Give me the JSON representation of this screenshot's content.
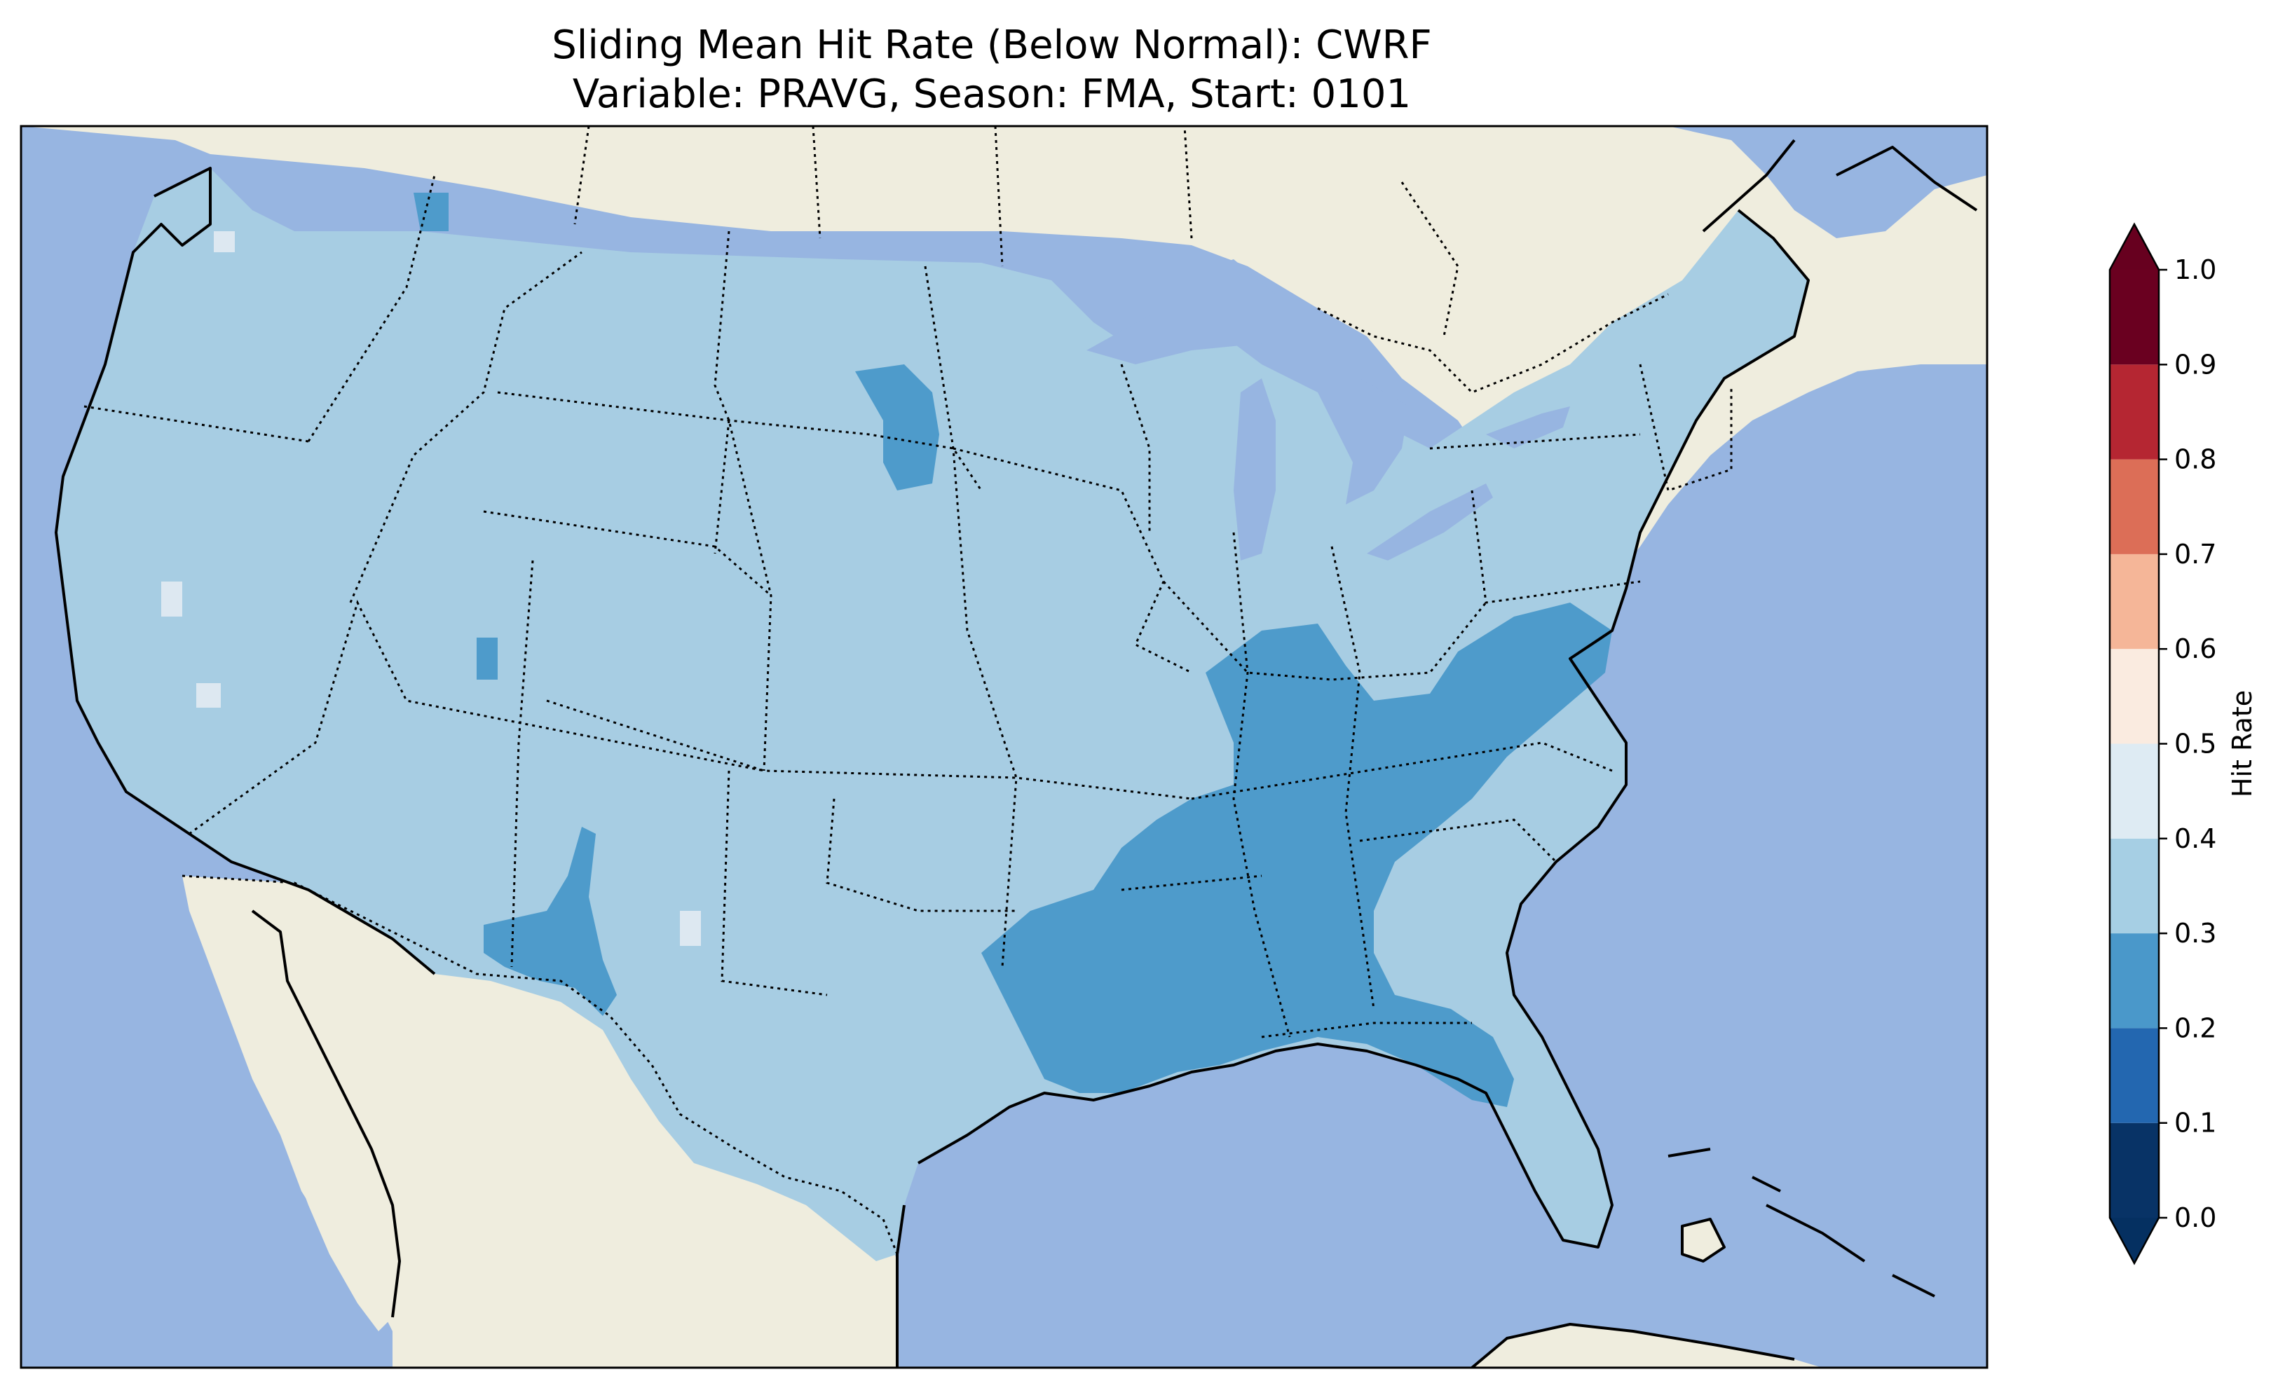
{
  "title": {
    "line1": "Sliding Mean Hit Rate (Below Normal): CWRF",
    "line2": "Variable: PRAVG, Season: FMA, Start: 0101"
  },
  "colors": {
    "ocean": "#97b5e1",
    "land": "#efedde",
    "coast": "#000000",
    "field_main": "#a7cde3",
    "field_low": "#4e9bcb",
    "field_high": "#dde8f1",
    "lakes": "#97b5e1"
  },
  "colorbar": {
    "label": "Hit Rate",
    "ticks": [
      "0.0",
      "0.1",
      "0.2",
      "0.3",
      "0.4",
      "0.5",
      "0.6",
      "0.7",
      "0.8",
      "0.9",
      "1.0"
    ],
    "bins": [
      {
        "from": 0.0,
        "to": 0.1,
        "color": "#083366"
      },
      {
        "from": 0.1,
        "to": 0.2,
        "color": "#2367b0"
      },
      {
        "from": 0.2,
        "to": 0.3,
        "color": "#4a98ca"
      },
      {
        "from": 0.3,
        "to": 0.4,
        "color": "#a6cfe4"
      },
      {
        "from": 0.4,
        "to": 0.5,
        "color": "#deebf3"
      },
      {
        "from": 0.5,
        "to": 0.6,
        "color": "#faebe0"
      },
      {
        "from": 0.6,
        "to": 0.7,
        "color": "#f5b698"
      },
      {
        "from": 0.7,
        "to": 0.8,
        "color": "#dc6e57"
      },
      {
        "from": 0.8,
        "to": 0.9,
        "color": "#b52632"
      },
      {
        "from": 0.9,
        "to": 1.0,
        "color": "#6a0020"
      }
    ],
    "under_color": "#053061",
    "over_color": "#67001f",
    "range": [
      0.0,
      1.0
    ]
  }
}
